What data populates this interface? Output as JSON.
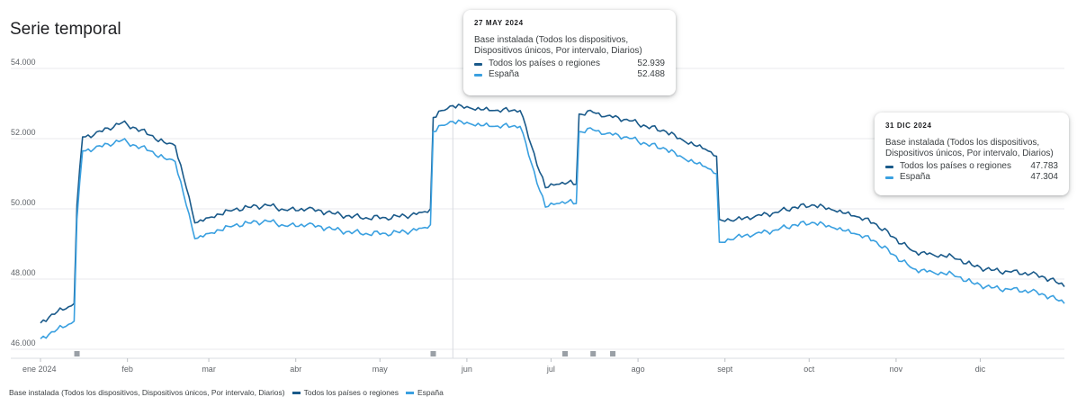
{
  "title": "Serie temporal",
  "colors": {
    "total": "#1a5a8a",
    "spain": "#3aa0e0",
    "grid": "#e8eaed",
    "marker": "#9aa0a6"
  },
  "chart_data": {
    "type": "line",
    "ylim": [
      46000,
      54000
    ],
    "yticks": [
      {
        "value": 46000,
        "label": "46.000"
      },
      {
        "value": 48000,
        "label": "48.000"
      },
      {
        "value": 50000,
        "label": "50.000"
      },
      {
        "value": 52000,
        "label": "52.000"
      },
      {
        "value": 54000,
        "label": "54.000"
      }
    ],
    "xlim": [
      "2024-01-01",
      "2024-12-31"
    ],
    "xticks": [
      {
        "date": "2024-01-01",
        "label": "ene 2024"
      },
      {
        "date": "2024-02-01",
        "label": "feb"
      },
      {
        "date": "2024-03-01",
        "label": "mar"
      },
      {
        "date": "2024-04-01",
        "label": "abr"
      },
      {
        "date": "2024-05-01",
        "label": "may"
      },
      {
        "date": "2024-06-01",
        "label": "jun"
      },
      {
        "date": "2024-07-01",
        "label": "jul"
      },
      {
        "date": "2024-08-01",
        "label": "ago"
      },
      {
        "date": "2024-09-01",
        "label": "sept"
      },
      {
        "date": "2024-10-01",
        "label": "oct"
      },
      {
        "date": "2024-11-01",
        "label": "nov"
      },
      {
        "date": "2024-12-01",
        "label": "dic"
      }
    ],
    "grid": true,
    "event_markers": [
      "2024-01-14",
      "2024-05-20",
      "2024-07-06",
      "2024-07-16",
      "2024-07-23"
    ],
    "crosshair_date": "2024-05-27",
    "series": [
      {
        "name": "Todos los países o regiones",
        "color": "#1a5a8a",
        "points": [
          [
            "2024-01-01",
            46750
          ],
          [
            "2024-01-05",
            47000
          ],
          [
            "2024-01-10",
            47150
          ],
          [
            "2024-01-13",
            47300
          ],
          [
            "2024-01-14",
            50100
          ],
          [
            "2024-01-16",
            52050
          ],
          [
            "2024-01-20",
            52100
          ],
          [
            "2024-01-25",
            52300
          ],
          [
            "2024-01-30",
            52450
          ],
          [
            "2024-02-04",
            52300
          ],
          [
            "2024-02-09",
            52100
          ],
          [
            "2024-02-14",
            51900
          ],
          [
            "2024-02-18",
            51800
          ],
          [
            "2024-02-22",
            50600
          ],
          [
            "2024-02-25",
            49600
          ],
          [
            "2024-03-01",
            49750
          ],
          [
            "2024-03-08",
            49950
          ],
          [
            "2024-03-15",
            50050
          ],
          [
            "2024-03-22",
            50100
          ],
          [
            "2024-03-29",
            49950
          ],
          [
            "2024-04-05",
            50000
          ],
          [
            "2024-04-12",
            49900
          ],
          [
            "2024-04-19",
            49800
          ],
          [
            "2024-04-26",
            49750
          ],
          [
            "2024-05-03",
            49750
          ],
          [
            "2024-05-10",
            49800
          ],
          [
            "2024-05-16",
            49900
          ],
          [
            "2024-05-19",
            50000
          ],
          [
            "2024-05-20",
            52600
          ],
          [
            "2024-05-23",
            52800
          ],
          [
            "2024-05-27",
            52939
          ],
          [
            "2024-06-03",
            52850
          ],
          [
            "2024-06-10",
            52800
          ],
          [
            "2024-06-17",
            52800
          ],
          [
            "2024-06-20",
            52800
          ],
          [
            "2024-06-24",
            51800
          ],
          [
            "2024-06-29",
            50600
          ],
          [
            "2024-07-03",
            50700
          ],
          [
            "2024-07-07",
            50750
          ],
          [
            "2024-07-10",
            50700
          ],
          [
            "2024-07-11",
            52700
          ],
          [
            "2024-07-16",
            52750
          ],
          [
            "2024-07-21",
            52650
          ],
          [
            "2024-07-28",
            52550
          ],
          [
            "2024-08-04",
            52350
          ],
          [
            "2024-08-11",
            52200
          ],
          [
            "2024-08-18",
            51900
          ],
          [
            "2024-08-25",
            51700
          ],
          [
            "2024-08-29",
            51500
          ],
          [
            "2024-08-30",
            49700
          ],
          [
            "2024-09-05",
            49700
          ],
          [
            "2024-09-12",
            49800
          ],
          [
            "2024-09-19",
            49900
          ],
          [
            "2024-09-26",
            50050
          ],
          [
            "2024-10-03",
            50100
          ],
          [
            "2024-10-10",
            49950
          ],
          [
            "2024-10-17",
            49800
          ],
          [
            "2024-10-24",
            49600
          ],
          [
            "2024-10-31",
            49200
          ],
          [
            "2024-11-07",
            48800
          ],
          [
            "2024-11-14",
            48700
          ],
          [
            "2024-11-21",
            48650
          ],
          [
            "2024-11-28",
            48400
          ],
          [
            "2024-12-05",
            48250
          ],
          [
            "2024-12-12",
            48200
          ],
          [
            "2024-12-19",
            48150
          ],
          [
            "2024-12-26",
            48000
          ],
          [
            "2024-12-31",
            47783
          ]
        ]
      },
      {
        "name": "España",
        "color": "#3aa0e0",
        "points": [
          [
            "2024-01-01",
            46300
          ],
          [
            "2024-01-05",
            46500
          ],
          [
            "2024-01-10",
            46650
          ],
          [
            "2024-01-13",
            46800
          ],
          [
            "2024-01-14",
            49700
          ],
          [
            "2024-01-16",
            51650
          ],
          [
            "2024-01-20",
            51700
          ],
          [
            "2024-01-25",
            51850
          ],
          [
            "2024-01-30",
            51950
          ],
          [
            "2024-02-04",
            51800
          ],
          [
            "2024-02-09",
            51650
          ],
          [
            "2024-02-14",
            51450
          ],
          [
            "2024-02-18",
            51350
          ],
          [
            "2024-02-22",
            50100
          ],
          [
            "2024-02-25",
            49150
          ],
          [
            "2024-03-01",
            49300
          ],
          [
            "2024-03-08",
            49500
          ],
          [
            "2024-03-15",
            49600
          ],
          [
            "2024-03-22",
            49650
          ],
          [
            "2024-03-29",
            49500
          ],
          [
            "2024-04-05",
            49550
          ],
          [
            "2024-04-12",
            49450
          ],
          [
            "2024-04-19",
            49350
          ],
          [
            "2024-04-26",
            49300
          ],
          [
            "2024-05-03",
            49300
          ],
          [
            "2024-05-10",
            49350
          ],
          [
            "2024-05-16",
            49450
          ],
          [
            "2024-05-19",
            49550
          ],
          [
            "2024-05-20",
            52200
          ],
          [
            "2024-05-23",
            52380
          ],
          [
            "2024-05-27",
            52488
          ],
          [
            "2024-06-03",
            52400
          ],
          [
            "2024-06-10",
            52350
          ],
          [
            "2024-06-17",
            52350
          ],
          [
            "2024-06-20",
            52350
          ],
          [
            "2024-06-24",
            51300
          ],
          [
            "2024-06-29",
            50050
          ],
          [
            "2024-07-03",
            50150
          ],
          [
            "2024-07-07",
            50200
          ],
          [
            "2024-07-10",
            50150
          ],
          [
            "2024-07-11",
            52200
          ],
          [
            "2024-07-16",
            52250
          ],
          [
            "2024-07-21",
            52150
          ],
          [
            "2024-07-28",
            52050
          ],
          [
            "2024-08-04",
            51850
          ],
          [
            "2024-08-11",
            51700
          ],
          [
            "2024-08-18",
            51400
          ],
          [
            "2024-08-25",
            51200
          ],
          [
            "2024-08-29",
            51000
          ],
          [
            "2024-08-30",
            49050
          ],
          [
            "2024-09-05",
            49200
          ],
          [
            "2024-09-12",
            49300
          ],
          [
            "2024-09-19",
            49400
          ],
          [
            "2024-09-26",
            49550
          ],
          [
            "2024-10-03",
            49600
          ],
          [
            "2024-10-10",
            49450
          ],
          [
            "2024-10-17",
            49300
          ],
          [
            "2024-10-24",
            49100
          ],
          [
            "2024-10-31",
            48700
          ],
          [
            "2024-11-07",
            48300
          ],
          [
            "2024-11-14",
            48200
          ],
          [
            "2024-11-21",
            48150
          ],
          [
            "2024-11-28",
            47900
          ],
          [
            "2024-12-05",
            47750
          ],
          [
            "2024-12-12",
            47700
          ],
          [
            "2024-12-19",
            47650
          ],
          [
            "2024-12-26",
            47500
          ],
          [
            "2024-12-31",
            47304
          ]
        ]
      }
    ]
  },
  "tooltips": [
    {
      "date": "27 MAY 2024",
      "metric": "Base instalada (Todos los dispositivos, Dispositivos únicos, Por intervalo, Diarios)",
      "rows": [
        {
          "label": "Todos los países o regiones",
          "value": "52.939",
          "color": "#1a5a8a"
        },
        {
          "label": "España",
          "value": "52.488",
          "color": "#3aa0e0"
        }
      ]
    },
    {
      "date": "31 DIC 2024",
      "metric": "Base instalada (Todos los dispositivos, Dispositivos únicos, Por intervalo, Diarios)",
      "rows": [
        {
          "label": "Todos los países o regiones",
          "value": "47.783",
          "color": "#1a5a8a"
        },
        {
          "label": "España",
          "value": "47.304",
          "color": "#3aa0e0"
        }
      ]
    }
  ],
  "legend": {
    "metric": "Base instalada (Todos los dispositivos, Dispositivos únicos, Por intervalo, Diarios)",
    "items": [
      {
        "label": "Todos los países o regiones",
        "color": "#1a5a8a"
      },
      {
        "label": "España",
        "color": "#3aa0e0"
      }
    ]
  }
}
